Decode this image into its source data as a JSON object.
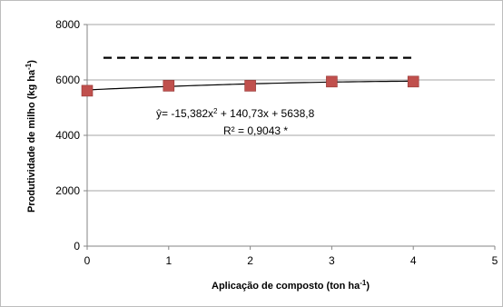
{
  "chart_data": {
    "type": "scatter",
    "xlabel": "Aplicação de composto (ton ha",
    "xlabel_sup": "-1",
    "xlabel_close": ")",
    "ylabel": "Produtividade de milho  (kg ha",
    "ylabel_sup": "-1",
    "ylabel_close": ")",
    "xlim": [
      0,
      5
    ],
    "ylim": [
      0,
      8000
    ],
    "x_ticks": [
      "0",
      "1",
      "2",
      "3",
      "4",
      "5"
    ],
    "y_ticks": [
      "0",
      "2000",
      "4000",
      "6000",
      "8000"
    ],
    "grid": {
      "horizontal": true,
      "vertical": false
    },
    "legend": "none",
    "series": [
      {
        "type": "scatter",
        "marker": "square",
        "color": "#c0504d",
        "x": [
          0,
          1,
          2,
          3,
          4
        ],
        "y": [
          5610,
          5790,
          5790,
          5940,
          5940
        ]
      }
    ],
    "trendline": {
      "equation_prefix": "ŷ= -15,382x",
      "equation_exp": "2",
      "equation_rest": " + 140,73x + 5638,8",
      "r2_label": "R² = 0,9043 *",
      "coefficients": [
        -15.382,
        140.73,
        5638.8
      ],
      "x_range": [
        0,
        4
      ],
      "color": "#000000"
    },
    "reference_line": {
      "style": "dashed",
      "y": 6800,
      "x_range": [
        0.2,
        4
      ]
    }
  }
}
